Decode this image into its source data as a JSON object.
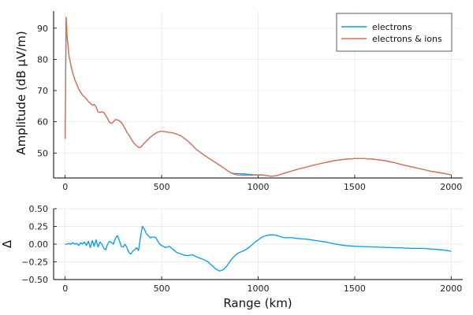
{
  "colors": {
    "electrons": "#009AFA",
    "electrons_ions": "#E36F47",
    "delta": "#009AFA"
  },
  "chart_data": [
    {
      "type": "line",
      "xlabel": "",
      "ylabel": "Amplitude (dB µV/m)",
      "xlim": [
        -60,
        2060
      ],
      "ylim": [
        42,
        95.5
      ],
      "xticks": [
        0,
        500,
        1000,
        1500,
        2000
      ],
      "yticks": [
        50,
        60,
        70,
        80,
        90
      ],
      "grid": true,
      "legend": {
        "position": "top-right",
        "entries": [
          "electrons",
          "electrons & ions"
        ]
      },
      "series": [
        {
          "name": "electrons",
          "x": [
            0,
            5,
            10,
            20,
            30,
            40,
            50,
            60,
            70,
            80,
            90,
            100,
            110,
            120,
            130,
            140,
            150,
            160,
            170,
            180,
            190,
            200,
            210,
            220,
            230,
            240,
            250,
            260,
            270,
            280,
            290,
            300,
            310,
            320,
            330,
            340,
            350,
            360,
            370,
            380,
            390,
            400,
            420,
            440,
            460,
            480,
            500,
            520,
            540,
            560,
            580,
            600,
            620,
            640,
            660,
            680,
            700,
            720,
            740,
            760,
            780,
            800,
            820,
            840,
            860,
            880,
            900,
            920,
            940,
            960,
            980,
            1000,
            1020,
            1040,
            1060,
            1080,
            1100,
            1150,
            1200,
            1250,
            1300,
            1350,
            1400,
            1450,
            1500,
            1550,
            1600,
            1650,
            1700,
            1750,
            1800,
            1850,
            1900,
            1950,
            2000
          ],
          "y": [
            54.5,
            93.5,
            87.5,
            81.0,
            78.0,
            75.5,
            73.5,
            72.0,
            70.5,
            69.5,
            68.5,
            68.0,
            67.3,
            66.5,
            66.0,
            65.3,
            65.6,
            64.8,
            63.2,
            63.0,
            63.2,
            63.0,
            62.0,
            61.0,
            59.8,
            59.5,
            60.0,
            60.7,
            60.6,
            60.4,
            59.8,
            58.9,
            57.9,
            56.6,
            55.8,
            54.7,
            53.7,
            52.9,
            52.3,
            51.8,
            51.8,
            52.5,
            53.8,
            55.0,
            56.0,
            56.7,
            57.0,
            56.8,
            56.6,
            56.4,
            56.0,
            55.5,
            54.6,
            53.6,
            52.4,
            51.1,
            50.2,
            49.3,
            48.5,
            47.7,
            46.9,
            46.1,
            45.3,
            44.4,
            43.6,
            43.4,
            43.4,
            43.3,
            43.2,
            43.1,
            43.0,
            43.0,
            43.0,
            42.8,
            42.6,
            42.6,
            42.8,
            43.8,
            44.7,
            45.5,
            46.3,
            47.0,
            47.6,
            48.0,
            48.2,
            48.2,
            48.0,
            47.6,
            47.0,
            46.2,
            45.5,
            44.8,
            44.1,
            43.6,
            43.0
          ]
        },
        {
          "name": "electrons & ions",
          "x": [
            0,
            5,
            10,
            20,
            30,
            40,
            50,
            60,
            70,
            80,
            90,
            100,
            110,
            120,
            130,
            140,
            150,
            160,
            170,
            180,
            190,
            200,
            210,
            220,
            230,
            240,
            250,
            260,
            270,
            280,
            290,
            300,
            310,
            320,
            330,
            340,
            350,
            360,
            370,
            380,
            390,
            400,
            420,
            440,
            460,
            480,
            500,
            520,
            540,
            560,
            580,
            600,
            620,
            640,
            660,
            680,
            700,
            720,
            740,
            760,
            780,
            800,
            820,
            840,
            860,
            880,
            900,
            920,
            940,
            960,
            980,
            1000,
            1020,
            1040,
            1060,
            1080,
            1100,
            1150,
            1200,
            1250,
            1300,
            1350,
            1400,
            1450,
            1500,
            1550,
            1600,
            1650,
            1700,
            1750,
            1800,
            1850,
            1900,
            1950,
            2000
          ],
          "y": [
            54.5,
            93.5,
            87.5,
            81.0,
            78.0,
            75.5,
            73.5,
            72.0,
            70.5,
            69.5,
            68.5,
            68.0,
            67.3,
            66.5,
            66.0,
            65.3,
            65.6,
            64.8,
            63.2,
            63.0,
            63.2,
            63.0,
            62.0,
            61.0,
            59.8,
            59.5,
            60.0,
            60.7,
            60.6,
            60.4,
            59.8,
            58.9,
            57.9,
            56.6,
            55.8,
            54.7,
            53.7,
            52.9,
            52.3,
            51.8,
            51.8,
            52.5,
            53.8,
            55.0,
            56.0,
            56.7,
            57.0,
            56.8,
            56.6,
            56.4,
            56.0,
            55.5,
            54.6,
            53.6,
            52.4,
            51.1,
            50.2,
            49.3,
            48.5,
            47.7,
            46.9,
            46.1,
            45.3,
            44.4,
            43.6,
            43.1,
            42.9,
            42.9,
            42.9,
            42.9,
            42.9,
            42.9,
            42.9,
            42.8,
            42.6,
            42.6,
            42.8,
            43.8,
            44.7,
            45.5,
            46.3,
            47.0,
            47.6,
            48.0,
            48.2,
            48.2,
            48.0,
            47.6,
            47.0,
            46.2,
            45.5,
            44.8,
            44.1,
            43.6,
            43.0
          ]
        }
      ]
    },
    {
      "type": "line",
      "xlabel": "Range (km)",
      "ylabel": "Δ",
      "xlim": [
        -60,
        2060
      ],
      "ylim": [
        -0.5,
        0.5
      ],
      "xticks": [
        0,
        500,
        1000,
        1500,
        2000
      ],
      "yticks": [
        -0.5,
        -0.25,
        0.0,
        0.25,
        0.5
      ],
      "ytick_labels": [
        "−0.50",
        "−0.25",
        "0.00",
        "0.25",
        "0.50"
      ],
      "grid": true,
      "series": [
        {
          "x": [
            0,
            10,
            20,
            30,
            40,
            50,
            60,
            70,
            80,
            90,
            100,
            110,
            120,
            130,
            140,
            150,
            160,
            170,
            180,
            190,
            200,
            210,
            220,
            230,
            240,
            250,
            260,
            270,
            280,
            290,
            300,
            310,
            320,
            330,
            340,
            350,
            360,
            370,
            380,
            390,
            400,
            410,
            420,
            430,
            440,
            450,
            460,
            470,
            480,
            490,
            500,
            520,
            540,
            560,
            580,
            600,
            620,
            640,
            660,
            680,
            700,
            720,
            740,
            760,
            780,
            800,
            820,
            840,
            860,
            880,
            900,
            920,
            940,
            960,
            980,
            1000,
            1020,
            1040,
            1060,
            1080,
            1100,
            1120,
            1140,
            1160,
            1180,
            1200,
            1250,
            1300,
            1350,
            1400,
            1450,
            1500,
            1550,
            1600,
            1650,
            1700,
            1750,
            1800,
            1850,
            1900,
            1950,
            2000
          ],
          "y": [
            0.0,
            0.0,
            0.01,
            0.0,
            0.02,
            0.0,
            0.01,
            -0.02,
            0.02,
            0.0,
            0.03,
            -0.02,
            0.04,
            -0.05,
            0.05,
            -0.03,
            0.06,
            -0.04,
            0.03,
            0.0,
            -0.06,
            -0.08,
            0.0,
            0.04,
            0.02,
            0.0,
            0.08,
            0.12,
            0.06,
            -0.03,
            -0.04,
            0.0,
            -0.05,
            -0.12,
            -0.14,
            -0.1,
            -0.08,
            -0.05,
            -0.09,
            0.1,
            0.25,
            0.21,
            0.15,
            0.12,
            0.09,
            0.1,
            0.1,
            0.09,
            0.04,
            0.0,
            -0.02,
            -0.05,
            -0.03,
            -0.08,
            -0.12,
            -0.14,
            -0.16,
            -0.16,
            -0.15,
            -0.18,
            -0.2,
            -0.22,
            -0.25,
            -0.3,
            -0.35,
            -0.38,
            -0.36,
            -0.3,
            -0.22,
            -0.16,
            -0.12,
            -0.1,
            -0.07,
            -0.03,
            0.02,
            0.06,
            0.1,
            0.12,
            0.13,
            0.13,
            0.12,
            0.1,
            0.09,
            0.09,
            0.09,
            0.08,
            0.07,
            0.05,
            0.03,
            0.0,
            -0.02,
            -0.03,
            -0.035,
            -0.04,
            -0.045,
            -0.05,
            -0.055,
            -0.06,
            -0.06,
            -0.07,
            -0.08,
            -0.1
          ]
        }
      ]
    }
  ]
}
